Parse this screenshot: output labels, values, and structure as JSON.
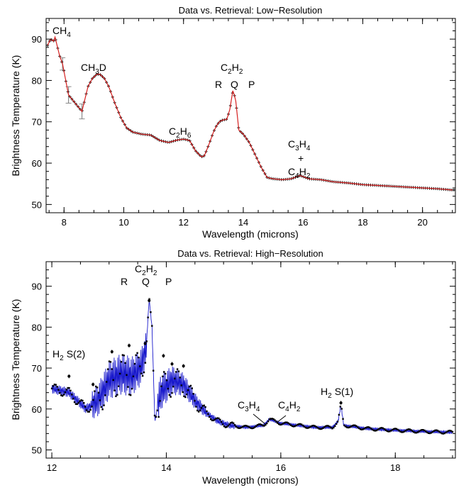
{
  "chart_data": [
    {
      "type": "line",
      "title": "Data vs. Retrieval: Low−Resolution",
      "xlabel": "Wavelength (microns)",
      "ylabel": "Brightness Temperature (K)",
      "xlim": [
        7.4,
        21.1
      ],
      "ylim": [
        48,
        95
      ],
      "xticks": [
        8,
        10,
        12,
        14,
        16,
        18,
        20
      ],
      "yticks": [
        50,
        60,
        70,
        80,
        90
      ],
      "xtick_labels": [
        "8",
        "10",
        "12",
        "14",
        "16",
        "18",
        "20"
      ],
      "ytick_labels": [
        "50",
        "60",
        "70",
        "80",
        "90"
      ],
      "colors": {
        "data": "#000000",
        "model": "#d62020",
        "error": "#888888"
      },
      "annotations": [
        {
          "id": "ch4",
          "base": "CH",
          "sub": "4",
          "tail": ""
        },
        {
          "id": "ch3d",
          "base": "CH",
          "sub": "3",
          "tail": "D"
        },
        {
          "id": "c2h6",
          "base": "C",
          "sub": "2",
          "mid": "H",
          "sub2": "6"
        },
        {
          "id": "c2h2",
          "base": "C",
          "sub": "2",
          "mid": "H",
          "sub2": "2"
        },
        {
          "id": "c3h4",
          "base": "C",
          "sub": "3",
          "mid": "H",
          "sub2": "4"
        },
        {
          "id": "c4h2",
          "base": "C",
          "sub": "4",
          "mid": "H",
          "sub2": "2"
        }
      ],
      "branch_labels": {
        "r": "R",
        "q": "Q",
        "p": "P",
        "plus": "+"
      },
      "x": [
        7.45,
        7.55,
        7.65,
        7.7,
        7.75,
        7.85,
        7.95,
        8.15,
        8.6,
        8.8,
        8.95,
        9.1,
        9.2,
        9.35,
        9.5,
        9.7,
        9.9,
        10.1,
        10.3,
        10.6,
        10.9,
        11.2,
        11.5,
        11.8,
        12.0,
        12.2,
        12.4,
        12.6,
        12.7,
        12.85,
        13.0,
        13.1,
        13.2,
        13.3,
        13.45,
        13.55,
        13.65,
        13.7,
        13.75,
        13.85,
        14.0,
        14.2,
        14.4,
        14.6,
        14.8,
        15.0,
        15.3,
        15.6,
        15.9,
        16.2,
        16.6,
        17.0,
        17.5,
        18.0,
        18.5,
        19.0,
        19.5,
        20.0,
        20.5,
        21.0
      ],
      "y": [
        88.5,
        90.0,
        89.5,
        90.5,
        89.0,
        86.0,
        84.0,
        76.5,
        72.5,
        78.5,
        80.5,
        81.5,
        81.5,
        80.5,
        78.5,
        74.5,
        71.0,
        68.5,
        67.5,
        67.0,
        66.8,
        65.5,
        65.0,
        65.6,
        65.8,
        65.5,
        63.0,
        61.5,
        61.8,
        64.5,
        67.5,
        69.0,
        70.0,
        70.4,
        70.6,
        73.0,
        77.5,
        76.5,
        75.0,
        68.0,
        67.0,
        65.0,
        62.0,
        59.0,
        56.5,
        56.2,
        56.0,
        56.2,
        57.0,
        56.2,
        56.0,
        55.5,
        55.2,
        54.8,
        54.6,
        54.4,
        54.2,
        54.0,
        53.8,
        53.5
      ],
      "data_err_points": [
        [
          8.15,
          76.5,
          2.0
        ],
        [
          8.6,
          72.5,
          1.8
        ],
        [
          7.95,
          84.0,
          1.5
        ]
      ]
    },
    {
      "type": "line",
      "title": "Data vs. Retrieval: High−Resolution",
      "xlabel": "Wavelength (microns)",
      "ylabel": "Brightness Temperature (K)",
      "xlim": [
        11.9,
        19.05
      ],
      "ylim": [
        48,
        96
      ],
      "xticks": [
        12,
        14,
        16,
        18
      ],
      "yticks": [
        50,
        60,
        70,
        80,
        90
      ],
      "xtick_labels": [
        "12",
        "14",
        "16",
        "18"
      ],
      "ytick_labels": [
        "50",
        "60",
        "70",
        "80",
        "90"
      ],
      "colors": {
        "data": "#000000",
        "model": "#1a1acc",
        "error": "#555555"
      },
      "annotations": [
        {
          "id": "h2s2",
          "text": "S(2)",
          "base": "H",
          "sub": "2"
        },
        {
          "id": "c2h2",
          "base": "C",
          "sub": "2",
          "mid": "H",
          "sub2": "2"
        },
        {
          "id": "c3h4",
          "base": "C",
          "sub": "3",
          "mid": "H",
          "sub2": "4"
        },
        {
          "id": "c4h2",
          "base": "C",
          "sub": "4",
          "mid": "H",
          "sub2": "2"
        },
        {
          "id": "h2s1",
          "text": "S(1)",
          "base": "H",
          "sub": "2"
        }
      ],
      "branch_labels": {
        "r": "R",
        "q": "Q",
        "p": "P"
      },
      "envelope_x": [
        12.0,
        12.3,
        12.6,
        12.8,
        13.0,
        13.2,
        13.4,
        13.55,
        13.65,
        13.7,
        13.75,
        13.8,
        13.9,
        14.1,
        14.3,
        14.5,
        14.7,
        14.9,
        15.1,
        15.4,
        15.7,
        15.8,
        15.9,
        16.0,
        16.3,
        16.6,
        16.9,
        17.0,
        17.05,
        17.1,
        17.5,
        18.0,
        18.5,
        19.0
      ],
      "envelope_y": [
        65.0,
        64.0,
        60.0,
        62.0,
        67.0,
        68.5,
        68.0,
        70.0,
        75.0,
        87.0,
        80.0,
        57.0,
        64.0,
        67.0,
        66.0,
        62.0,
        59.0,
        57.0,
        56.0,
        55.5,
        56.0,
        57.5,
        57.0,
        56.5,
        56.0,
        55.5,
        55.5,
        57.0,
        61.0,
        56.0,
        55.2,
        54.8,
        54.5,
        54.3
      ],
      "outliers": [
        [
          12.3,
          68.0
        ],
        [
          12.72,
          66.0
        ],
        [
          13.05,
          74.0
        ],
        [
          13.35,
          75.5
        ],
        [
          13.63,
          76.0
        ],
        [
          13.7,
          86.5
        ],
        [
          13.95,
          73.0
        ],
        [
          14.1,
          71.0
        ],
        [
          14.3,
          70.5
        ],
        [
          17.05,
          61.5
        ]
      ]
    }
  ]
}
